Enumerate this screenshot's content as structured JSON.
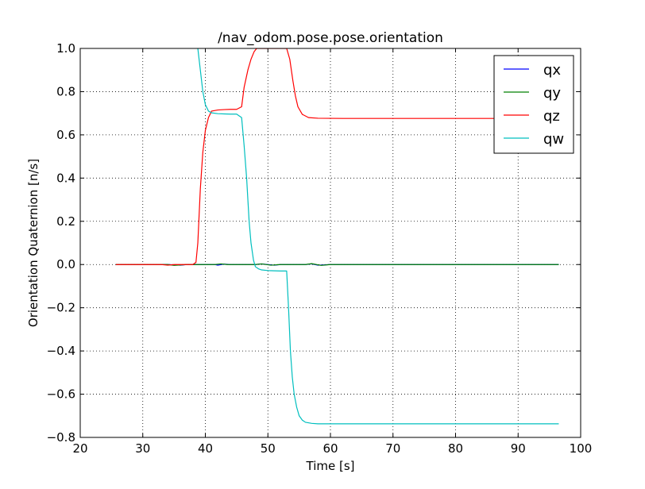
{
  "chart_data": {
    "type": "line",
    "title": "/nav_odom.pose.pose.orientation",
    "xlabel": "Time [s]",
    "ylabel": "Orientation Quaternion [n/s]",
    "xlim": [
      20,
      100
    ],
    "ylim": [
      -0.8,
      1.0
    ],
    "xticks": [
      20,
      30,
      40,
      50,
      60,
      70,
      80,
      90,
      100
    ],
    "xtick_labels": [
      "20",
      "30",
      "40",
      "50",
      "60",
      "70",
      "80",
      "90",
      "100"
    ],
    "yticks": [
      -0.8,
      -0.6,
      -0.4,
      -0.2,
      0.0,
      0.2,
      0.4,
      0.6,
      0.8,
      1.0
    ],
    "ytick_labels": [
      "−0.8",
      "−0.6",
      "−0.4",
      "−0.2",
      "0.0",
      "0.2",
      "0.4",
      "0.6",
      "0.8",
      "1.0"
    ],
    "grid": true,
    "legend_position": "top-right",
    "series": [
      {
        "name": "qx",
        "color": "#0000ff",
        "x": [
          25.7,
          34,
          36,
          37,
          41.5,
          42,
          43,
          44,
          48,
          49,
          51,
          52,
          56,
          57,
          58,
          60,
          96.5
        ],
        "y": [
          0,
          0,
          -0.003,
          0,
          0,
          -0.003,
          0.002,
          0,
          0,
          0.003,
          -0.003,
          0,
          0,
          0.003,
          -0.003,
          0,
          0
        ]
      },
      {
        "name": "qy",
        "color": "#008000",
        "x": [
          25.7,
          34,
          35,
          37,
          41.5,
          42.5,
          43.5,
          48,
          49,
          50.5,
          52,
          56,
          57,
          58.5,
          60,
          96.5
        ],
        "y": [
          0,
          0,
          -0.004,
          0,
          0,
          0.003,
          0,
          0,
          0.003,
          -0.003,
          0,
          0,
          0.004,
          -0.004,
          0,
          0
        ]
      },
      {
        "name": "qz",
        "color": "#ff0000",
        "x": [
          25.7,
          33,
          34,
          35,
          36,
          38,
          38.5,
          38.8,
          39.2,
          39.6,
          40,
          40.5,
          41,
          42,
          43,
          44,
          45,
          45.8,
          46.2,
          46.8,
          47.3,
          47.8,
          48.2,
          48.7,
          53,
          53.5,
          54,
          54.4,
          54.8,
          55.5,
          56.5,
          58,
          62,
          96.5
        ],
        "y": [
          0,
          0,
          -0.003,
          0,
          0,
          0,
          0.01,
          0.1,
          0.35,
          0.52,
          0.62,
          0.68,
          0.71,
          0.715,
          0.717,
          0.718,
          0.718,
          0.73,
          0.82,
          0.9,
          0.95,
          0.985,
          1.0,
          1.0,
          1.0,
          0.95,
          0.85,
          0.78,
          0.73,
          0.695,
          0.68,
          0.677,
          0.676,
          0.676
        ]
      },
      {
        "name": "qw",
        "color": "#00bfbf",
        "x": [
          38.8,
          39.2,
          39.6,
          40,
          40.5,
          41,
          42,
          43,
          44,
          45,
          45.8,
          46.2,
          46.6,
          47,
          47.3,
          47.7,
          48,
          48.5,
          49,
          50,
          52,
          53,
          53.3,
          53.6,
          53.9,
          54.2,
          54.6,
          55,
          55.5,
          56,
          57,
          58,
          60,
          96.5
        ],
        "y": [
          1.0,
          0.9,
          0.8,
          0.74,
          0.71,
          0.702,
          0.698,
          0.697,
          0.696,
          0.696,
          0.68,
          0.55,
          0.4,
          0.2,
          0.1,
          0.02,
          -0.01,
          -0.02,
          -0.025,
          -0.028,
          -0.03,
          -0.03,
          -0.2,
          -0.4,
          -0.52,
          -0.6,
          -0.66,
          -0.7,
          -0.72,
          -0.73,
          -0.735,
          -0.737,
          -0.737,
          -0.737
        ]
      }
    ]
  }
}
